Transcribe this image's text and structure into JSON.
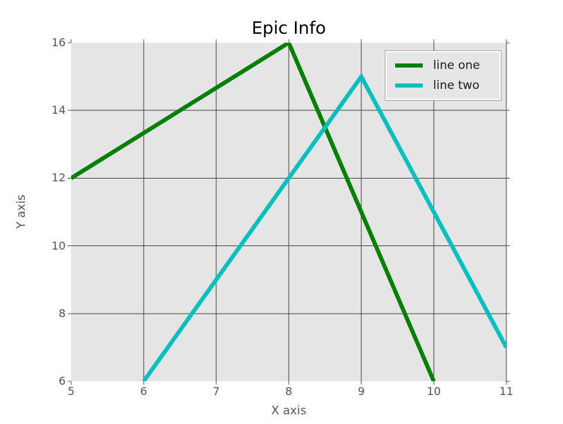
{
  "chart_data": {
    "type": "line",
    "title": "Epic Info",
    "xlabel": "X axis",
    "ylabel": "Y axis",
    "xlim": [
      5,
      11
    ],
    "ylim": [
      6,
      16
    ],
    "xticks": [
      5,
      6,
      7,
      8,
      9,
      10,
      11
    ],
    "yticks": [
      6,
      8,
      10,
      12,
      14,
      16
    ],
    "grid": true,
    "legend_position": "upper right",
    "series": [
      {
        "name": "line one",
        "color": "#008000",
        "points": [
          [
            5,
            12
          ],
          [
            8,
            16
          ],
          [
            10,
            6
          ]
        ]
      },
      {
        "name": "line two",
        "color": "#00bfbf",
        "points": [
          [
            6,
            6
          ],
          [
            9,
            15
          ],
          [
            11,
            7
          ]
        ]
      }
    ],
    "colors": {
      "plot_bg": "#e5e5e5",
      "grid": "#444444",
      "tick": "#555555",
      "tick_label": "#555555",
      "axis_label": "#555555",
      "title": "#000000",
      "legend_bg": "#e6e6e6",
      "legend_text": "#1a1a1a"
    }
  }
}
